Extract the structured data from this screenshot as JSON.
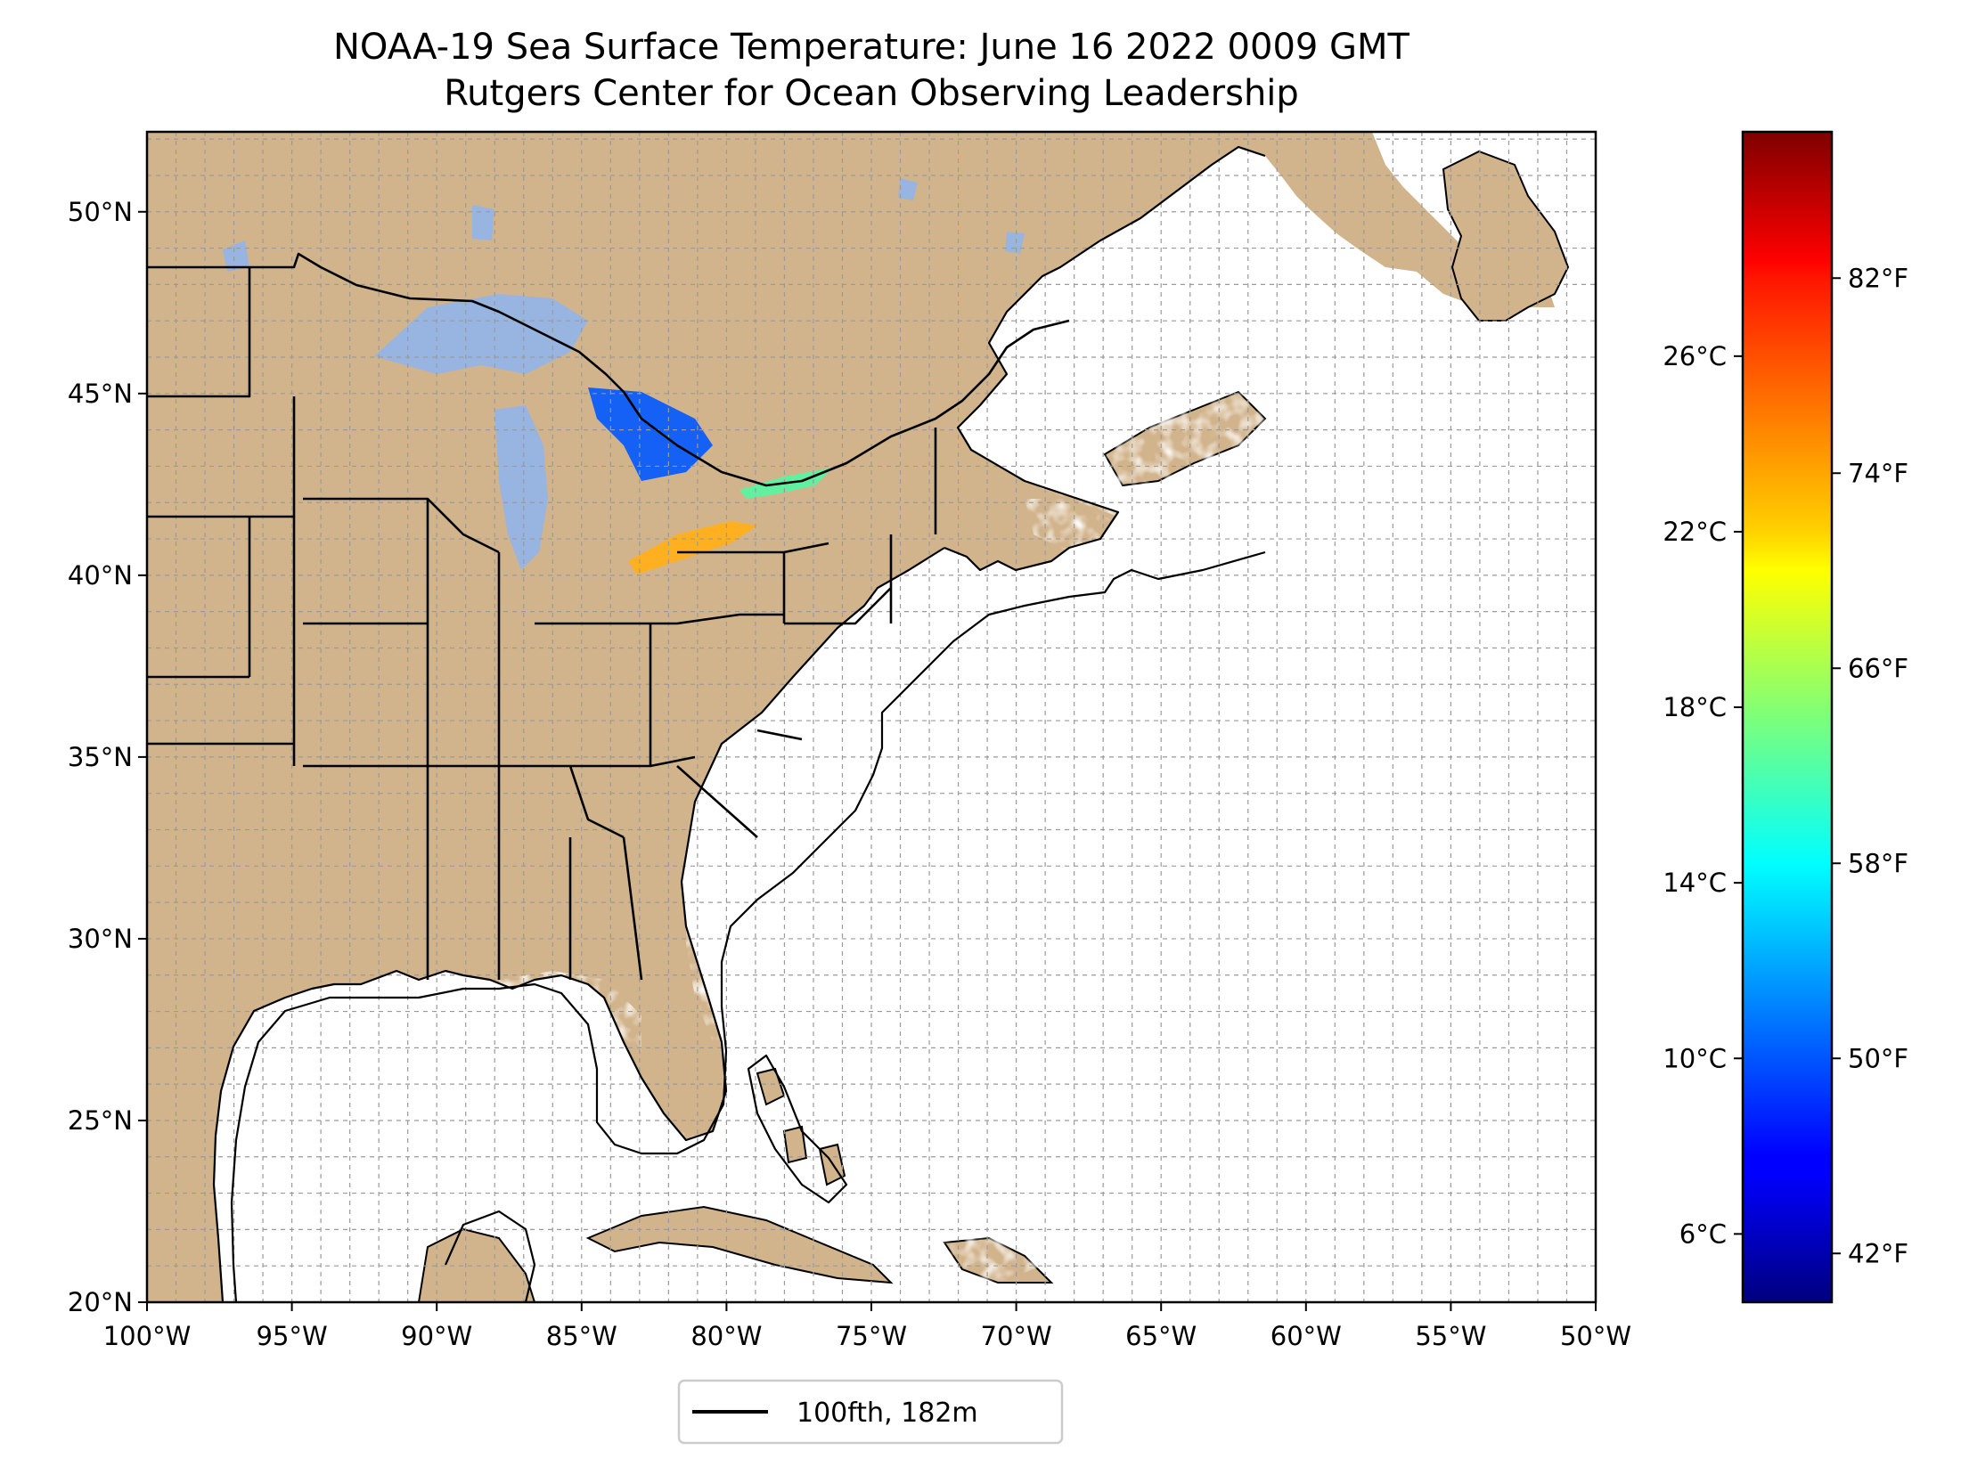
{
  "title": {
    "line1": "NOAA-19 Sea Surface Temperature: June 16 2022 0009 GMT",
    "line2": "Rutgers Center for Ocean Observing Leadership"
  },
  "map": {
    "lon_range": [
      -100,
      -50
    ],
    "lat_range": [
      20,
      52.2
    ],
    "land_color": "#d2b48c",
    "lake_color": "#98b4e0",
    "grid": true,
    "lon_ticks": [
      {
        "value": -100,
        "label": "100°W"
      },
      {
        "value": -95,
        "label": "95°W"
      },
      {
        "value": -90,
        "label": "90°W"
      },
      {
        "value": -85,
        "label": "85°W"
      },
      {
        "value": -80,
        "label": "80°W"
      },
      {
        "value": -75,
        "label": "75°W"
      },
      {
        "value": -70,
        "label": "70°W"
      },
      {
        "value": -65,
        "label": "65°W"
      },
      {
        "value": -60,
        "label": "60°W"
      },
      {
        "value": -55,
        "label": "55°W"
      },
      {
        "value": -50,
        "label": "50°W"
      }
    ],
    "lat_ticks": [
      {
        "value": 20,
        "label": "20°N"
      },
      {
        "value": 25,
        "label": "25°N"
      },
      {
        "value": 30,
        "label": "30°N"
      },
      {
        "value": 35,
        "label": "35°N"
      },
      {
        "value": 40,
        "label": "40°N"
      },
      {
        "value": 45,
        "label": "45°N"
      },
      {
        "value": 50,
        "label": "50°N"
      }
    ]
  },
  "colorbar": {
    "colormap": "jet",
    "range_f": [
      40,
      88
    ],
    "celsius_ticks": [
      {
        "value": 6,
        "label": "6°C"
      },
      {
        "value": 10,
        "label": "10°C"
      },
      {
        "value": 14,
        "label": "14°C"
      },
      {
        "value": 18,
        "label": "18°C"
      },
      {
        "value": 22,
        "label": "22°C"
      },
      {
        "value": 26,
        "label": "26°C"
      }
    ],
    "fahrenheit_ticks": [
      {
        "value": 42,
        "label": "42°F"
      },
      {
        "value": 50,
        "label": "50°F"
      },
      {
        "value": 58,
        "label": "58°F"
      },
      {
        "value": 66,
        "label": "66°F"
      },
      {
        "value": 74,
        "label": "74°F"
      },
      {
        "value": 82,
        "label": "82°F"
      }
    ]
  },
  "legend": {
    "label": "100fth, 182m",
    "line_color": "#000000",
    "position": "bottom-center"
  }
}
